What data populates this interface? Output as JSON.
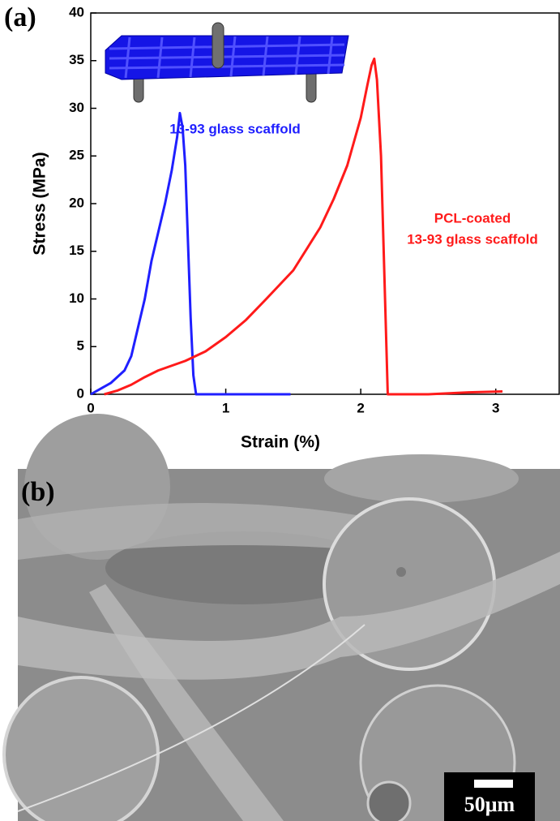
{
  "figure": {
    "panel_a": "(a)",
    "panel_b": "(b)",
    "scale_bar": "50μm"
  },
  "chart_data": {
    "type": "line",
    "x_label": "Strain (%)",
    "y_label": "Stress (MPa)",
    "xlim": [
      0,
      3.47
    ],
    "ylim": [
      0,
      40
    ],
    "xticks": [
      0,
      1,
      2,
      3
    ],
    "yticks": [
      0,
      5,
      10,
      15,
      20,
      25,
      30,
      35,
      40
    ],
    "series": [
      {
        "name_lines": [
          "13-93 glass scaffold"
        ],
        "color": "#1f1fff",
        "x": [
          0,
          0.15,
          0.25,
          0.3,
          0.35,
          0.4,
          0.45,
          0.5,
          0.55,
          0.6,
          0.64,
          0.66,
          0.68,
          0.7,
          0.72,
          0.74,
          0.76,
          0.78,
          1.0,
          1.48
        ],
        "values": [
          0,
          1.2,
          2.5,
          4,
          7,
          10,
          14,
          17,
          20,
          23.5,
          27,
          29.5,
          28,
          24,
          16,
          8,
          2,
          0,
          0,
          0
        ]
      },
      {
        "name_lines": [
          "PCL-coated",
          "13-93 glass scaffold"
        ],
        "color": "#ff1a1a",
        "x": [
          0.1,
          0.2,
          0.3,
          0.4,
          0.5,
          0.7,
          0.85,
          1.0,
          1.15,
          1.3,
          1.5,
          1.7,
          1.8,
          1.9,
          1.95,
          2.0,
          2.05,
          2.08,
          2.1,
          2.12,
          2.15,
          2.17,
          2.19,
          2.2,
          2.5,
          2.8,
          3.05
        ],
        "values": [
          0,
          0.4,
          1,
          1.8,
          2.5,
          3.5,
          4.5,
          6,
          7.8,
          10,
          13,
          17.5,
          20.5,
          24,
          26.5,
          29,
          32.5,
          34.5,
          35.2,
          33,
          25,
          15,
          5,
          0,
          0,
          0.2,
          0.3
        ]
      }
    ]
  }
}
